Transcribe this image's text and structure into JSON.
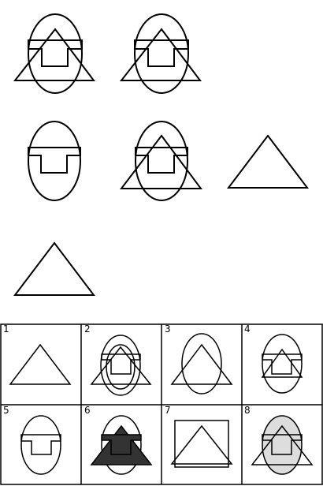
{
  "answers": [
    {
      "number": "1"
    },
    {
      "number": "2"
    },
    {
      "number": "3"
    },
    {
      "number": "4"
    },
    {
      "number": "5"
    },
    {
      "number": "6"
    },
    {
      "number": "7"
    },
    {
      "number": "8"
    }
  ]
}
